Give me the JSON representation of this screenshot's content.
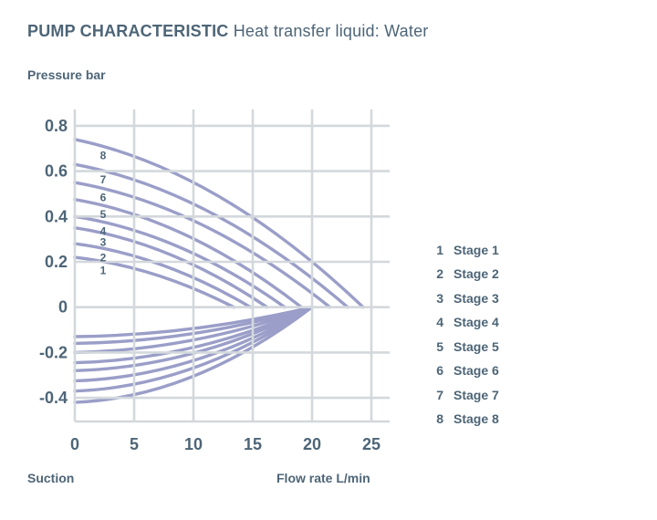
{
  "header": {
    "title_bold": "PUMP CHARACTERISTIC",
    "title_rest": "Heat transfer liquid: Water"
  },
  "labels": {
    "y_axis_caption": "Pressure bar",
    "x_axis_caption": "Flow rate L/min",
    "suction_caption": "Suction"
  },
  "legend": {
    "position": "right",
    "items": [
      {
        "num": "1",
        "label": "Stage 1"
      },
      {
        "num": "2",
        "label": "Stage 2"
      },
      {
        "num": "3",
        "label": "Stage 3"
      },
      {
        "num": "4",
        "label": "Stage 4"
      },
      {
        "num": "5",
        "label": "Stage 5"
      },
      {
        "num": "6",
        "label": "Stage 6"
      },
      {
        "num": "7",
        "label": "Stage 7"
      },
      {
        "num": "8",
        "label": "Stage 8"
      }
    ]
  },
  "colors": {
    "text": "#4d6577",
    "curve": "#9a9ec8",
    "grid": "#d3d8dc"
  },
  "chart_data": {
    "type": "line",
    "title": "PUMP CHARACTERISTic Heat transfer liquid: Water",
    "xlabel": "Flow rate L/min",
    "ylabel": "Pressure bar",
    "xlim": [
      0,
      26.5
    ],
    "ylim": [
      -0.5,
      0.87
    ],
    "grid": true,
    "x_ticks": [
      0,
      5,
      10,
      15,
      20,
      25
    ],
    "x_tick_labels": [
      "0",
      "5",
      "10",
      "15",
      "20",
      "25"
    ],
    "y_ticks": [
      0.8,
      0.6,
      0.4,
      0.2,
      0,
      -0.2,
      -0.4
    ],
    "y_tick_labels": [
      "0.8",
      "0.6",
      "0.4",
      "0.2",
      "0",
      "-0.2",
      "-0.4"
    ],
    "pressure_series": [
      {
        "name": "Stage 1",
        "curve_label": "1",
        "pressure_at_zero_flow": 0.22,
        "flow_at_zero_pressure": 13.4
      },
      {
        "name": "Stage 2",
        "curve_label": "2",
        "pressure_at_zero_flow": 0.28,
        "flow_at_zero_pressure": 14.8
      },
      {
        "name": "Stage 3",
        "curve_label": "3",
        "pressure_at_zero_flow": 0.35,
        "flow_at_zero_pressure": 16.2
      },
      {
        "name": "Stage 4",
        "curve_label": "4",
        "pressure_at_zero_flow": 0.4,
        "flow_at_zero_pressure": 17.7
      },
      {
        "name": "Stage 5",
        "curve_label": "5",
        "pressure_at_zero_flow": 0.475,
        "flow_at_zero_pressure": 19.1
      },
      {
        "name": "Stage 6",
        "curve_label": "6",
        "pressure_at_zero_flow": 0.55,
        "flow_at_zero_pressure": 21.5
      },
      {
        "name": "Stage 7",
        "curve_label": "7",
        "pressure_at_zero_flow": 0.63,
        "flow_at_zero_pressure": 23.0
      },
      {
        "name": "Stage 8",
        "curve_label": "8",
        "pressure_at_zero_flow": 0.74,
        "flow_at_zero_pressure": 24.3
      }
    ],
    "suction_series": [
      {
        "name": "Stage 1",
        "suction_at_zero_flow": -0.13,
        "flow_at_zero_suction": 20
      },
      {
        "name": "Stage 2",
        "suction_at_zero_flow": -0.16,
        "flow_at_zero_suction": 20
      },
      {
        "name": "Stage 3",
        "suction_at_zero_flow": -0.2,
        "flow_at_zero_suction": 20
      },
      {
        "name": "Stage 4",
        "suction_at_zero_flow": -0.245,
        "flow_at_zero_suction": 20
      },
      {
        "name": "Stage 5",
        "suction_at_zero_flow": -0.28,
        "flow_at_zero_suction": 20
      },
      {
        "name": "Stage 6",
        "suction_at_zero_flow": -0.325,
        "flow_at_zero_suction": 20
      },
      {
        "name": "Stage 7",
        "suction_at_zero_flow": -0.37,
        "flow_at_zero_suction": 20
      },
      {
        "name": "Stage 8",
        "suction_at_zero_flow": -0.42,
        "flow_at_zero_suction": 20
      }
    ]
  }
}
